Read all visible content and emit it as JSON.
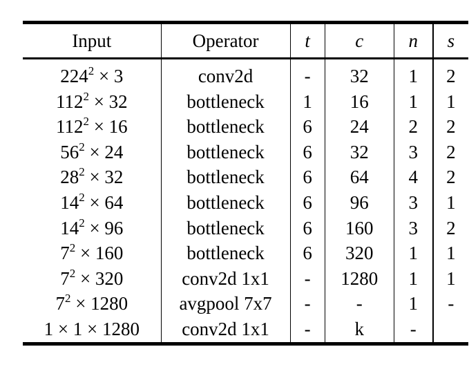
{
  "headers": {
    "input": "Input",
    "operator": "Operator",
    "t": "t",
    "c": "c",
    "n": "n",
    "s": "s"
  },
  "rows": [
    {
      "base": "224",
      "exp": "2",
      "rest": " × 3",
      "op": "conv2d",
      "t": "-",
      "c": "32",
      "n": "1",
      "s": "2"
    },
    {
      "base": "112",
      "exp": "2",
      "rest": " × 32",
      "op": "bottleneck",
      "t": "1",
      "c": "16",
      "n": "1",
      "s": "1"
    },
    {
      "base": "112",
      "exp": "2",
      "rest": " × 16",
      "op": "bottleneck",
      "t": "6",
      "c": "24",
      "n": "2",
      "s": "2"
    },
    {
      "base": "56",
      "exp": "2",
      "rest": " × 24",
      "op": "bottleneck",
      "t": "6",
      "c": "32",
      "n": "3",
      "s": "2"
    },
    {
      "base": "28",
      "exp": "2",
      "rest": " × 32",
      "op": "bottleneck",
      "t": "6",
      "c": "64",
      "n": "4",
      "s": "2"
    },
    {
      "base": "14",
      "exp": "2",
      "rest": " × 64",
      "op": "bottleneck",
      "t": "6",
      "c": "96",
      "n": "3",
      "s": "1"
    },
    {
      "base": "14",
      "exp": "2",
      "rest": " × 96",
      "op": "bottleneck",
      "t": "6",
      "c": "160",
      "n": "3",
      "s": "2"
    },
    {
      "base": "7",
      "exp": "2",
      "rest": " × 160",
      "op": "bottleneck",
      "t": "6",
      "c": "320",
      "n": "1",
      "s": "1"
    },
    {
      "base": "7",
      "exp": "2",
      "rest": " × 320",
      "op": "conv2d 1x1",
      "t": "-",
      "c": "1280",
      "n": "1",
      "s": "1"
    },
    {
      "base": "7",
      "exp": "2",
      "rest": " × 1280",
      "op": "avgpool 7x7",
      "t": "-",
      "c": "-",
      "n": "1",
      "s": "-"
    },
    {
      "base": "1 × 1 × 1280",
      "exp": "",
      "rest": "",
      "op": "conv2d 1x1",
      "t": "-",
      "c": "k",
      "n": "-",
      "s": ""
    }
  ]
}
